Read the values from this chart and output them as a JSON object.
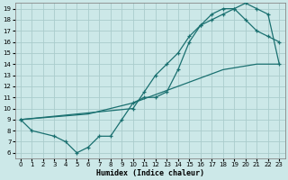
{
  "xlabel": "Humidex (Indice chaleur)",
  "ylabel": "",
  "bg_color": "#cce8e8",
  "line_color": "#1a7070",
  "grid_color": "#b8d8d8",
  "xlim": [
    -0.5,
    23.5
  ],
  "ylim": [
    5.5,
    19.5
  ],
  "xticks": [
    0,
    1,
    2,
    3,
    4,
    5,
    6,
    7,
    8,
    9,
    10,
    11,
    12,
    13,
    14,
    15,
    16,
    17,
    18,
    19,
    20,
    21,
    22,
    23
  ],
  "yticks": [
    6,
    7,
    8,
    9,
    10,
    11,
    12,
    13,
    14,
    15,
    16,
    17,
    18,
    19
  ],
  "line_zigzag": [
    [
      0,
      9
    ],
    [
      1,
      8
    ],
    [
      3,
      7.5
    ],
    [
      4,
      7
    ],
    [
      5,
      6
    ],
    [
      6,
      6.5
    ],
    [
      7,
      7.5
    ],
    [
      8,
      7.5
    ],
    [
      9,
      9
    ],
    [
      10,
      10.5
    ],
    [
      11,
      11
    ],
    [
      12,
      11
    ],
    [
      13,
      11.5
    ],
    [
      14,
      13.5
    ],
    [
      15,
      16
    ],
    [
      16,
      17.5
    ],
    [
      17,
      18.5
    ],
    [
      18,
      19
    ],
    [
      19,
      19
    ],
    [
      20,
      18
    ],
    [
      21,
      17
    ],
    [
      22,
      16.5
    ],
    [
      23,
      16
    ]
  ],
  "line_upper": [
    [
      0,
      9
    ],
    [
      10,
      10
    ],
    [
      11,
      11.5
    ],
    [
      12,
      13
    ],
    [
      13,
      14
    ],
    [
      14,
      15
    ],
    [
      15,
      16.5
    ],
    [
      16,
      17.5
    ],
    [
      17,
      18
    ],
    [
      18,
      18.5
    ],
    [
      19,
      19
    ],
    [
      20,
      19.5
    ],
    [
      21,
      19
    ],
    [
      22,
      18.5
    ],
    [
      23,
      14
    ]
  ],
  "line_diag": [
    [
      0,
      9
    ],
    [
      6,
      9.5
    ],
    [
      10,
      10.5
    ],
    [
      14,
      12
    ],
    [
      18,
      13.5
    ],
    [
      21,
      14
    ],
    [
      23,
      14
    ]
  ]
}
